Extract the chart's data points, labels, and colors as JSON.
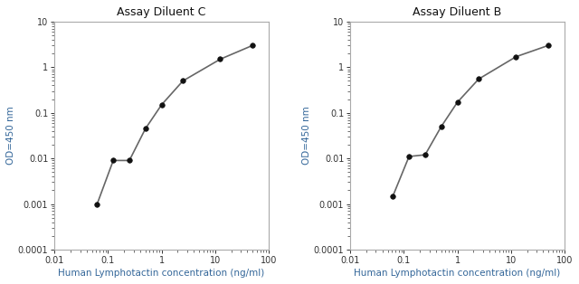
{
  "chart_C": {
    "title": "Assay Diluent C",
    "x": [
      0.0625,
      0.125,
      0.25,
      0.5,
      1.0,
      2.5,
      12.5,
      50.0
    ],
    "y": [
      0.001,
      0.009,
      0.009,
      0.045,
      0.15,
      0.5,
      1.5,
      3.0
    ]
  },
  "chart_B": {
    "title": "Assay Diluent B",
    "x": [
      0.0625,
      0.125,
      0.25,
      0.5,
      1.0,
      2.5,
      12.5,
      50.0
    ],
    "y": [
      0.0015,
      0.011,
      0.012,
      0.05,
      0.17,
      0.55,
      1.7,
      3.0
    ]
  },
  "xlabel": "Human Lymphotactin concentration (ng/ml)",
  "ylabel": "OD=450 nm",
  "xlim": [
    0.03,
    100
  ],
  "ylim": [
    0.0001,
    10
  ],
  "xticks": [
    0.01,
    0.1,
    1,
    10,
    100
  ],
  "xtick_labels": [
    "0.01",
    "0.1",
    "1",
    "10",
    "100"
  ],
  "yticks": [
    0.0001,
    0.001,
    0.01,
    0.1,
    1,
    10
  ],
  "ytick_labels": [
    "0.0001",
    "0.001",
    "0.01",
    "0.1",
    "1",
    "10"
  ],
  "line_color": "#666666",
  "marker_color": "#111111",
  "label_color": "#336699",
  "tick_color": "#333333",
  "title_color": "#111111",
  "bg_color": "#ffffff",
  "plot_bg_color": "#ffffff",
  "spine_color": "#aaaaaa",
  "marker_size": 4,
  "line_width": 1.2
}
